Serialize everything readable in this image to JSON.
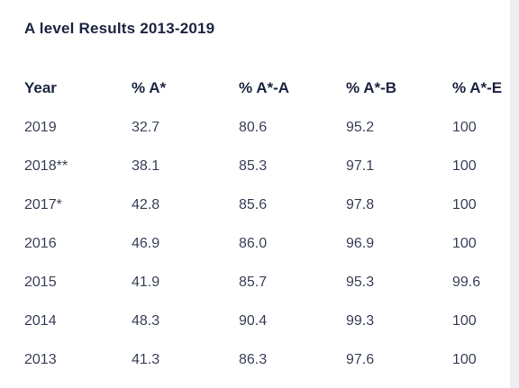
{
  "title": "A level Results 2013-2019",
  "table": {
    "headers": [
      "Year",
      "% A*",
      "% A*-A",
      "% A*-B",
      "% A*-E"
    ],
    "rows": [
      [
        "2019",
        "32.7",
        "80.6",
        "95.2",
        "100"
      ],
      [
        "2018**",
        "38.1",
        "85.3",
        "97.1",
        "100"
      ],
      [
        "2017*",
        "42.8",
        "85.6",
        "97.8",
        "100"
      ],
      [
        "2016",
        "46.9",
        "86.0",
        "96.9",
        "100"
      ],
      [
        "2015",
        "41.9",
        "85.7",
        "95.3",
        "99.6"
      ],
      [
        "2014",
        "48.3",
        "90.4",
        "99.3",
        "100"
      ],
      [
        "2013",
        "41.3",
        "86.3",
        "97.6",
        "100"
      ]
    ]
  }
}
